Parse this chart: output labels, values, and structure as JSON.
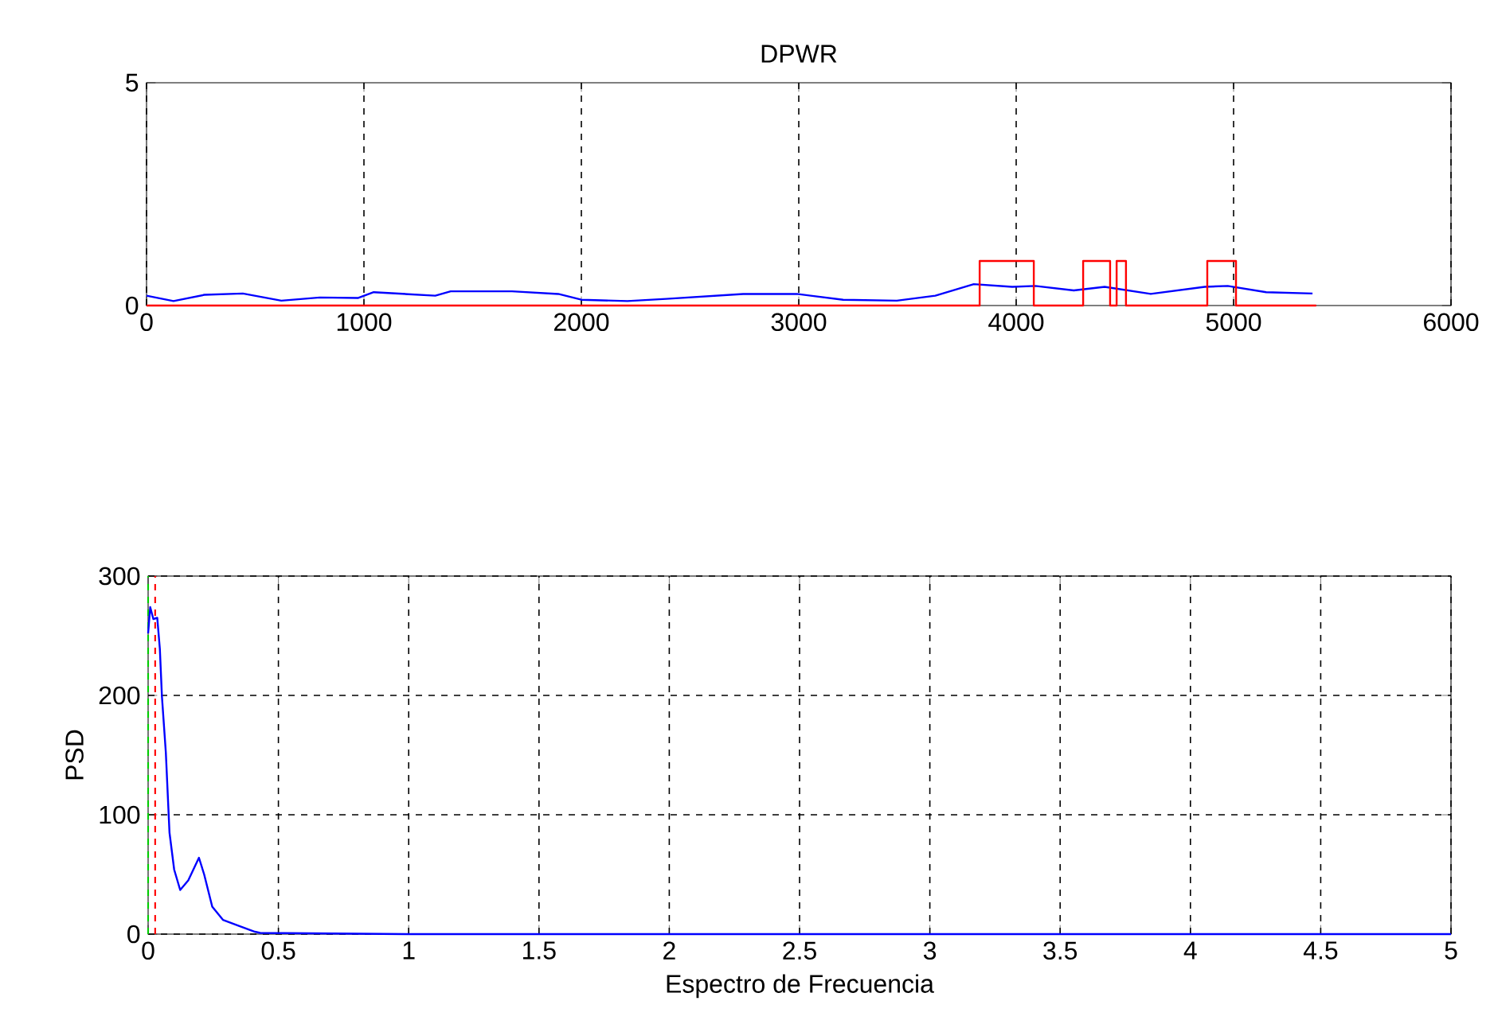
{
  "chart_data": [
    {
      "type": "line",
      "title": "DPWR",
      "xlim": [
        0,
        6000
      ],
      "ylim": [
        0,
        5
      ],
      "xticks": [
        0,
        1000,
        2000,
        3000,
        4000,
        5000,
        6000
      ],
      "yticks": [
        0,
        5
      ],
      "grid": "x",
      "series": [
        {
          "color": "#0000ff",
          "x": [
            0,
            124,
            266,
            443,
            620,
            797,
            974,
            1045,
            1328,
            1399,
            1681,
            1894,
            2000,
            2212,
            2390,
            2744,
            2991,
            3204,
            3451,
            3628,
            3805,
            3982,
            4088,
            4265,
            4407,
            4619,
            4867,
            4973,
            5150,
            5363
          ],
          "values": [
            0.22,
            0.1,
            0.24,
            0.27,
            0.11,
            0.18,
            0.17,
            0.3,
            0.22,
            0.32,
            0.32,
            0.26,
            0.13,
            0.1,
            0.15,
            0.26,
            0.26,
            0.13,
            0.11,
            0.22,
            0.48,
            0.42,
            0.44,
            0.34,
            0.42,
            0.26,
            0.42,
            0.44,
            0.3,
            0.27
          ]
        },
        {
          "color": "#ff0000",
          "x": [
            0,
            3832,
            3832,
            4081,
            4081,
            4308,
            4308,
            4432,
            4432,
            4462,
            4462,
            4505,
            4505,
            4879,
            4879,
            5011,
            5011,
            5380
          ],
          "values": [
            0,
            0,
            1,
            1,
            0,
            0,
            1,
            1,
            0,
            0,
            1,
            1,
            0,
            0,
            1,
            1,
            0,
            0
          ]
        }
      ]
    },
    {
      "type": "line",
      "xlabel": "Espectro de Frecuencia",
      "ylabel": "PSD",
      "xlim": [
        0,
        5
      ],
      "ylim": [
        0,
        300
      ],
      "xticks": [
        0,
        0.5,
        1,
        1.5,
        2,
        2.5,
        3,
        3.5,
        4,
        4.5,
        5
      ],
      "yticks": [
        0,
        100,
        200,
        300
      ],
      "grid": true,
      "ref_lines": [
        {
          "axis": "x",
          "value": 0,
          "color": "#00cc00",
          "line_style": "dashed"
        },
        {
          "axis": "x",
          "value": 0.027,
          "color": "#ff0000",
          "line_style": "dashed"
        }
      ],
      "series": [
        {
          "color": "#0000ff",
          "x": [
            0,
            0.008,
            0.02,
            0.035,
            0.045,
            0.053,
            0.068,
            0.082,
            0.1,
            0.123,
            0.154,
            0.195,
            0.215,
            0.246,
            0.287,
            0.348,
            0.41,
            0.43,
            1,
            2,
            3,
            4,
            5
          ],
          "values": [
            252,
            274,
            264,
            265,
            239,
            199,
            152,
            85,
            54,
            37,
            45,
            64,
            50,
            23,
            12,
            7,
            2,
            1,
            0,
            0,
            0,
            0,
            0
          ]
        }
      ]
    }
  ]
}
